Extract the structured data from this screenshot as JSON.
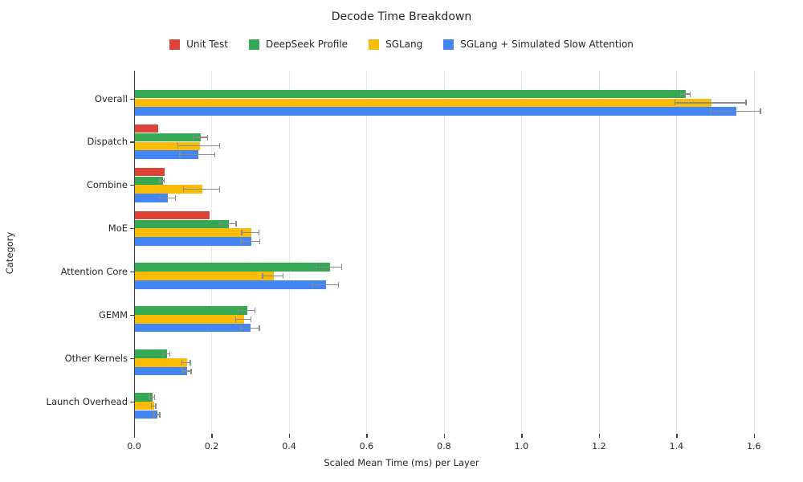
{
  "title": "Decode Time Breakdown",
  "colors": {
    "background": "#ffffff",
    "gridline": "#e7e7e7",
    "axis_spine": "#3c3c3c",
    "error_bar": "#8a8a8a",
    "text": "#262626"
  },
  "chart_data": {
    "type": "bar",
    "orientation": "horizontal",
    "title": "Decode Time Breakdown",
    "xlabel": "Scaled Mean Time (ms) per Layer",
    "ylabel": "Category",
    "xlim": [
      0,
      1.675
    ],
    "xtick_labels": [
      "0.0",
      "0.2",
      "0.4",
      "0.6",
      "0.8",
      "1.0",
      "1.2",
      "1.4",
      "1.6"
    ],
    "grid": "vertical-only",
    "legend_position": "top-center",
    "categories": [
      "Overall",
      "Dispatch",
      "Combine",
      "MoE",
      "Attention Core",
      "GEMM",
      "Other Kernels",
      "Launch Overhead"
    ],
    "series": [
      {
        "name": "Unit Test",
        "color": "#db4437",
        "values": [
          null,
          0.061,
          0.077,
          0.193,
          null,
          null,
          null,
          null
        ],
        "errors": [
          null,
          null,
          null,
          null,
          null,
          null,
          null,
          null
        ]
      },
      {
        "name": "DeepSeek Profile",
        "color": "#34a853",
        "values": [
          1.423,
          0.171,
          0.072,
          0.242,
          0.503,
          0.29,
          0.083,
          0.046
        ],
        "errors": [
          0.012,
          0.019,
          0.006,
          0.021,
          0.033,
          0.022,
          0.009,
          0.007
        ]
      },
      {
        "name": "SGLang",
        "color": "#fbbc04",
        "values": [
          1.488,
          0.167,
          0.174,
          0.3,
          0.358,
          0.282,
          0.134,
          0.05
        ],
        "errors": [
          0.092,
          0.054,
          0.047,
          0.022,
          0.026,
          0.02,
          0.011,
          0.006
        ]
      },
      {
        "name": "SGLang + Simulated Slow Attention",
        "color": "#4285f4",
        "values": [
          1.552,
          0.163,
          0.086,
          0.3,
          0.493,
          0.299,
          0.135,
          0.058
        ],
        "errors": [
          0.065,
          0.045,
          0.021,
          0.024,
          0.034,
          0.024,
          0.012,
          0.008
        ]
      }
    ]
  }
}
